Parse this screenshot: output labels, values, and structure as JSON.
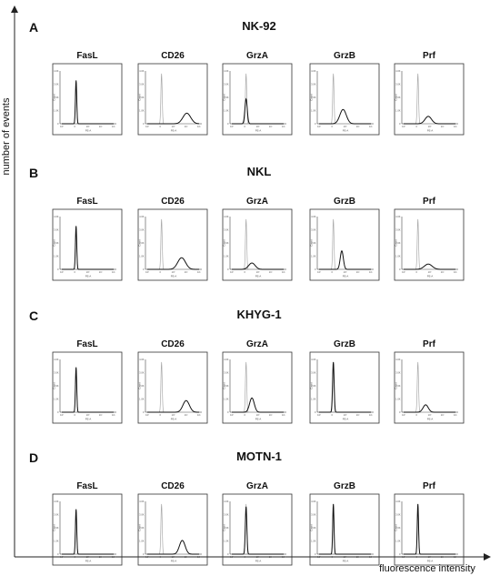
{
  "figure": {
    "y_axis_label": "number of events",
    "x_axis_label": "fluorescence intensity",
    "tick_labels": [
      "10³",
      "0",
      "10³",
      "10⁴",
      "10⁵"
    ],
    "y_tick_labels": [
      "4.0K",
      "3.0K",
      "2.0K",
      "1.0K",
      "0"
    ],
    "x_param": "PE-A",
    "y_param": "Count",
    "colors": {
      "sample": "#111111",
      "control": "#aaaaaa",
      "axis": "#222222",
      "panel_border": "#333333"
    }
  },
  "chart_data": [
    {
      "type": "area",
      "panel": "A",
      "title": "NK-92",
      "histograms": [
        {
          "marker": "FasL",
          "control_mu": 1.1,
          "control_sd": 0.05,
          "control_h": 0.82,
          "sample_mu": 1.1,
          "sample_sd": 0.05,
          "sample_h": 0.82
        },
        {
          "marker": "CD26",
          "control_mu": 1.1,
          "control_sd": 0.05,
          "control_h": 0.95,
          "sample_mu": 3.05,
          "sample_sd": 0.3,
          "sample_h": 0.2
        },
        {
          "marker": "GrzA",
          "control_mu": 1.1,
          "control_sd": 0.05,
          "control_h": 0.95,
          "sample_mu": 1.1,
          "sample_sd": 0.09,
          "sample_h": 0.47
        },
        {
          "marker": "GrzB",
          "control_mu": 1.1,
          "control_sd": 0.05,
          "control_h": 0.95,
          "sample_mu": 1.85,
          "sample_sd": 0.25,
          "sample_h": 0.27
        },
        {
          "marker": "Prf",
          "control_mu": 1.1,
          "control_sd": 0.05,
          "control_h": 0.95,
          "sample_mu": 1.9,
          "sample_sd": 0.25,
          "sample_h": 0.14
        }
      ]
    },
    {
      "type": "area",
      "panel": "B",
      "title": "NKL",
      "histograms": [
        {
          "marker": "FasL",
          "control_mu": 1.1,
          "control_sd": 0.05,
          "control_h": 0.82,
          "sample_mu": 1.1,
          "sample_sd": 0.05,
          "sample_h": 0.82
        },
        {
          "marker": "CD26",
          "control_mu": 1.1,
          "control_sd": 0.05,
          "control_h": 0.95,
          "sample_mu": 2.65,
          "sample_sd": 0.3,
          "sample_h": 0.22
        },
        {
          "marker": "GrzA",
          "control_mu": 1.1,
          "control_sd": 0.05,
          "control_h": 0.95,
          "sample_mu": 1.55,
          "sample_sd": 0.25,
          "sample_h": 0.12
        },
        {
          "marker": "GrzB",
          "control_mu": 1.1,
          "control_sd": 0.05,
          "control_h": 0.95,
          "sample_mu": 1.75,
          "sample_sd": 0.12,
          "sample_h": 0.35
        },
        {
          "marker": "Prf",
          "control_mu": 1.1,
          "control_sd": 0.05,
          "control_h": 0.95,
          "sample_mu": 1.9,
          "sample_sd": 0.3,
          "sample_h": 0.1
        }
      ]
    },
    {
      "type": "area",
      "panel": "C",
      "title": "KHYG-1",
      "histograms": [
        {
          "marker": "FasL",
          "control_mu": 1.1,
          "control_sd": 0.05,
          "control_h": 0.85,
          "sample_mu": 1.1,
          "sample_sd": 0.05,
          "sample_h": 0.85
        },
        {
          "marker": "CD26",
          "control_mu": 1.1,
          "control_sd": 0.05,
          "control_h": 0.95,
          "sample_mu": 3.0,
          "sample_sd": 0.25,
          "sample_h": 0.22
        },
        {
          "marker": "GrzA",
          "control_mu": 1.1,
          "control_sd": 0.05,
          "control_h": 0.95,
          "sample_mu": 1.55,
          "sample_sd": 0.18,
          "sample_h": 0.27
        },
        {
          "marker": "GrzB",
          "control_mu": 1.1,
          "control_sd": 0.05,
          "control_h": 0.95,
          "sample_mu": 1.1,
          "sample_sd": 0.06,
          "sample_h": 0.95
        },
        {
          "marker": "Prf",
          "control_mu": 1.1,
          "control_sd": 0.05,
          "control_h": 0.95,
          "sample_mu": 1.7,
          "sample_sd": 0.2,
          "sample_h": 0.14
        }
      ]
    },
    {
      "type": "area",
      "panel": "D",
      "title": "MOTN-1",
      "histograms": [
        {
          "marker": "FasL",
          "control_mu": 1.1,
          "control_sd": 0.05,
          "control_h": 0.85,
          "sample_mu": 1.1,
          "sample_sd": 0.05,
          "sample_h": 0.85
        },
        {
          "marker": "CD26",
          "control_mu": 1.1,
          "control_sd": 0.05,
          "control_h": 0.95,
          "sample_mu": 2.7,
          "sample_sd": 0.22,
          "sample_h": 0.26
        },
        {
          "marker": "GrzA",
          "control_mu": 1.1,
          "control_sd": 0.05,
          "control_h": 0.95,
          "sample_mu": 1.1,
          "sample_sd": 0.06,
          "sample_h": 0.9
        },
        {
          "marker": "GrzB",
          "control_mu": 1.1,
          "control_sd": 0.05,
          "control_h": 0.95,
          "sample_mu": 1.1,
          "sample_sd": 0.05,
          "sample_h": 0.95
        },
        {
          "marker": "Prf",
          "control_mu": 1.1,
          "control_sd": 0.05,
          "control_h": 0.95,
          "sample_mu": 1.1,
          "sample_sd": 0.05,
          "sample_h": 0.95
        }
      ]
    }
  ]
}
